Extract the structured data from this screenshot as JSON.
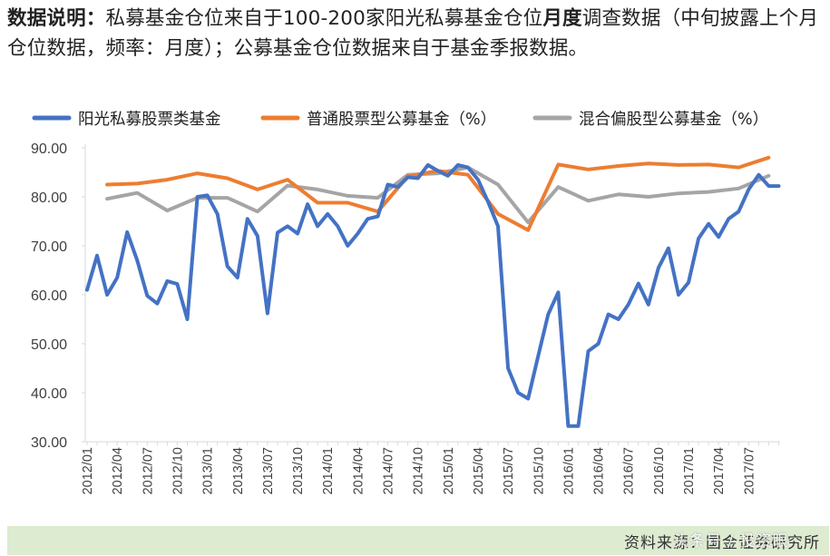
{
  "note": {
    "label": "数据说明：",
    "text_part1": "私募基金仓位来自于100-200家阳光私募基金仓位",
    "emphasis": "月度",
    "text_part2": "调查数据（中旬披露上个月仓位数据，频率：月度）；公募基金仓位数据来自于基金季报数据。"
  },
  "footer": {
    "source": "资料来源：国金证券研究所",
    "watermark": "头条号 / 投资眼"
  },
  "colors": {
    "private": "#4472c4",
    "stock_fund": "#ed7d31",
    "mixed_fund": "#a5a5a5",
    "axis": "#d9d9d9",
    "text": "#404040"
  },
  "chart_data": {
    "type": "line",
    "title": "",
    "xlabel": "",
    "ylabel": "",
    "ylim": [
      30,
      90
    ],
    "yticks": [
      "90.00",
      "80.00",
      "70.00",
      "60.00",
      "50.00",
      "40.00",
      "30.00"
    ],
    "x_start": "2012/01",
    "num_months": 70,
    "xtick_labels": [
      "2012/01",
      "2012/04",
      "2012/07",
      "2012/10",
      "2013/01",
      "2013/04",
      "2013/07",
      "2013/10",
      "2014/01",
      "2014/04",
      "2014/07",
      "2014/10",
      "2015/01",
      "2015/04",
      "2015/07",
      "2015/10",
      "2016/01",
      "2016/04",
      "2016/07",
      "2016/10",
      "2017/01",
      "2017/04",
      "2017/07"
    ],
    "xtick_indices": [
      0,
      3,
      6,
      9,
      12,
      15,
      18,
      21,
      24,
      27,
      30,
      33,
      36,
      39,
      42,
      45,
      48,
      51,
      54,
      57,
      60,
      63,
      66
    ],
    "series": [
      {
        "name": "阳光私募股票类基金",
        "color": "#4472c4",
        "x": [
          0,
          1,
          2,
          3,
          4,
          5,
          6,
          7,
          8,
          9,
          10,
          11,
          12,
          13,
          14,
          15,
          16,
          17,
          18,
          19,
          20,
          21,
          22,
          23,
          24,
          25,
          26,
          27,
          28,
          29,
          30,
          31,
          32,
          33,
          34,
          35,
          36,
          37,
          38,
          39,
          40,
          41,
          42,
          43,
          44,
          45,
          46,
          47,
          48,
          49,
          50,
          51,
          52,
          53,
          54,
          55,
          56,
          57,
          58,
          59,
          60,
          61,
          62,
          63,
          64,
          65,
          66,
          67,
          68,
          69
        ],
        "values": [
          61,
          68,
          60,
          63.5,
          72.8,
          67,
          59.8,
          58.2,
          62.8,
          62.2,
          55,
          80,
          80.3,
          76.5,
          65.8,
          63.5,
          75.5,
          72,
          56.2,
          72.7,
          74,
          72.5,
          78.5,
          74,
          76.5,
          74,
          70,
          72.5,
          75.5,
          76,
          82.5,
          82,
          84,
          83.8,
          86.5,
          85.3,
          84.3,
          86.5,
          86,
          83.5,
          79,
          74,
          45,
          40,
          38.8,
          47.5,
          56,
          60.5,
          33.2,
          33.2,
          48.5,
          50,
          56,
          55,
          58,
          62.3,
          58,
          65.5,
          69.5,
          60,
          62.5,
          71.5,
          74.5,
          71.8,
          75.5,
          77,
          81.5,
          84.5,
          82.2,
          82.2
        ]
      },
      {
        "name": "普通股票型公募基金（%）",
        "color": "#ed7d31",
        "x": [
          2,
          5,
          8,
          11,
          14,
          17,
          20,
          23,
          26,
          29,
          32,
          35,
          38,
          41,
          44,
          47,
          50,
          53,
          56,
          59,
          62,
          65,
          68
        ],
        "values": [
          82.5,
          82.7,
          83.5,
          84.8,
          83.8,
          81.5,
          83.5,
          78.8,
          78.8,
          77,
          84.2,
          85.3,
          84.5,
          76.5,
          73.2,
          86.6,
          85.6,
          86.3,
          86.8,
          86.5,
          86.6,
          86,
          88
        ]
      },
      {
        "name": "混合偏股型公募基金（%）",
        "color": "#a5a5a5",
        "x": [
          2,
          5,
          8,
          11,
          14,
          17,
          20,
          23,
          26,
          29,
          32,
          35,
          38,
          41,
          44,
          47,
          50,
          53,
          56,
          59,
          62,
          65,
          68
        ],
        "values": [
          79.6,
          80.8,
          77.2,
          79.8,
          79.8,
          77,
          82.3,
          81.5,
          80.2,
          79.8,
          84.5,
          84.8,
          86,
          82.5,
          74.8,
          82,
          79.2,
          80.5,
          80,
          80.7,
          81,
          81.7,
          84.3
        ]
      }
    ]
  }
}
